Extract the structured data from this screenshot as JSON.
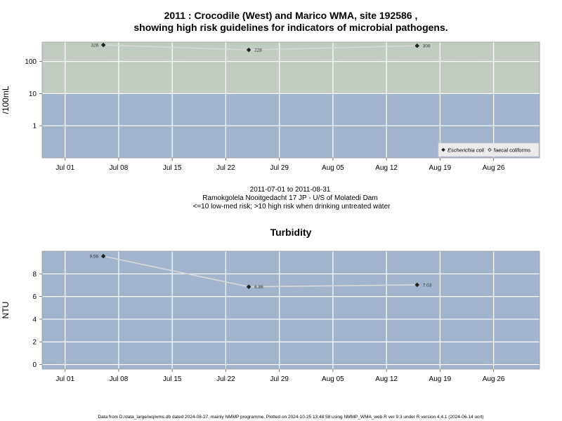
{
  "title_line1": "2011 : Crocodile (West) and Marico WMA, site 192586 ,",
  "title_line2": "showing high risk guidelines for indicators of microbial pathogens.",
  "subtitle": {
    "date_range": "2011-07-01 to 2011-08-31",
    "site": "Ramokgolela Nooitgedacht 17 JP - U/S of Molatedi Dam",
    "note": "<=10 low-med risk; >10 high risk when drinking untreated water"
  },
  "footer": "Data from D:/data_large/wq/wms.db dated 2024-08-27, mainly NMMP programme. Plotted on 2024-10-25 13:48:58 using NMMP_WMA_web.R ver 9.3 under R version 4.4.1 (2024-06-14 ucrt)",
  "colors": {
    "high_risk_band": "#c2cdc1",
    "low_risk_band": "#a2b4cc",
    "grid": "#ffffff",
    "series_line": "#d8d8d8",
    "marker": "#222222"
  },
  "chart_data": [
    {
      "type": "line",
      "ylabel": "/100mL",
      "y_scale": "log",
      "ylim": [
        0.1,
        400
      ],
      "y_ticks": [
        1,
        10,
        100
      ],
      "y_tick_labels": [
        "1",
        "10",
        "100"
      ],
      "threshold": 10,
      "x_tick_labels": [
        "Jul 01",
        "Jul 08",
        "Jul 15",
        "Jul 22",
        "Jul 29",
        "Aug 05",
        "Aug 12",
        "Aug 19",
        "Aug 26"
      ],
      "x_ticks": [
        "2011-07-01",
        "2011-07-08",
        "2011-07-15",
        "2011-07-22",
        "2011-07-29",
        "2011-08-05",
        "2011-08-12",
        "2011-08-19",
        "2011-08-26"
      ],
      "xlim": [
        "2011-06-28",
        "2011-09-01"
      ],
      "grid": true,
      "legend_position": "bottom-right",
      "legend": [
        {
          "label": "Escherichia coli",
          "marker": "filled-diamond",
          "italic": true
        },
        {
          "label": "faecal coliforms",
          "marker": "open-diamond",
          "italic": false
        }
      ],
      "series": [
        {
          "name": "Escherichia coli",
          "marker": "filled-diamond",
          "x": [
            "2011-07-06",
            "2011-07-25",
            "2011-08-16"
          ],
          "y": [
            326,
            228,
            308
          ],
          "labels": [
            "326",
            "228",
            "308"
          ]
        }
      ]
    },
    {
      "type": "line",
      "title": "Turbidity",
      "ylabel": "NTU",
      "y_scale": "linear",
      "ylim": [
        -0.4,
        10.0
      ],
      "y_ticks": [
        0,
        2,
        4,
        6,
        8
      ],
      "y_tick_labels": [
        "0",
        "2",
        "4",
        "6",
        "8"
      ],
      "x_tick_labels": [
        "Jul 01",
        "Jul 08",
        "Jul 15",
        "Jul 22",
        "Jul 29",
        "Aug 05",
        "Aug 12",
        "Aug 19",
        "Aug 26"
      ],
      "x_ticks": [
        "2011-07-01",
        "2011-07-08",
        "2011-07-15",
        "2011-07-22",
        "2011-07-29",
        "2011-08-05",
        "2011-08-12",
        "2011-08-19",
        "2011-08-26"
      ],
      "xlim": [
        "2011-06-28",
        "2011-09-01"
      ],
      "grid": true,
      "series": [
        {
          "marker": "filled-diamond",
          "x": [
            "2011-07-06",
            "2011-07-25",
            "2011-08-16"
          ],
          "y": [
            9.56,
            6.86,
            7.03
          ],
          "labels": [
            "9.56",
            "6.86",
            "7.03"
          ]
        }
      ]
    }
  ]
}
